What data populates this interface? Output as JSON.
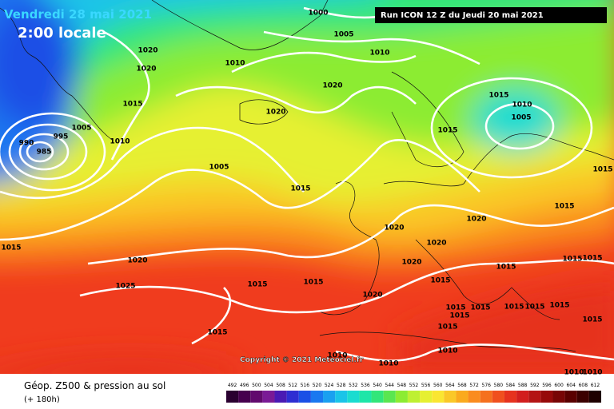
{
  "header": {
    "date": "Vendredi 28 mai 2021",
    "time": "2:00 locale",
    "run": "Run ICON 12 Z du Jeudi 20 mai 2021"
  },
  "copyright": "Copyright © 2021 Meteociel.fr",
  "footer": {
    "title": "Géop. Z500 & pression au sol",
    "subtitle": "(+ 180h)"
  },
  "isobar_labels": [
    "1000",
    "1005",
    "1010",
    "1020",
    "1020",
    "1010",
    "1015",
    "1020",
    "1020",
    "1015",
    "1010",
    "1005",
    "1015",
    "1010",
    "1005",
    "990",
    "985",
    "995",
    "1005",
    "1015",
    "1015",
    "1015",
    "1020",
    "1020",
    "1020",
    "1015",
    "1020",
    "1020",
    "1015",
    "1015",
    "1015",
    "1025",
    "1015",
    "1015",
    "1015",
    "1020",
    "1015",
    "1015",
    "1015",
    "1015",
    "1015",
    "1015",
    "1015",
    "1015",
    "1015",
    "1010",
    "1010",
    "1010",
    "1010",
    "1010"
  ],
  "legend": {
    "labels": [
      492,
      496,
      500,
      504,
      508,
      512,
      516,
      520,
      524,
      528,
      532,
      536,
      540,
      544,
      548,
      552,
      556,
      560,
      564,
      568,
      572,
      576,
      580,
      584,
      588,
      592,
      596,
      600,
      604,
      608,
      612
    ],
    "colors": [
      "#2a0030",
      "#46004e",
      "#620a6e",
      "#7a1a96",
      "#4a1ab4",
      "#2e2ed2",
      "#1a50e6",
      "#1a78f0",
      "#1aa0f0",
      "#1ac4e8",
      "#1adcd0",
      "#1ee6a8",
      "#32e67a",
      "#5ae650",
      "#8cec32",
      "#bef032",
      "#e6f032",
      "#fae632",
      "#fac828",
      "#faaa1e",
      "#fa8c1e",
      "#f5701e",
      "#f0501e",
      "#e6321e",
      "#d21e1e",
      "#b41414",
      "#960a0a",
      "#780505",
      "#5a0000",
      "#3c0000",
      "#1e0000"
    ]
  }
}
